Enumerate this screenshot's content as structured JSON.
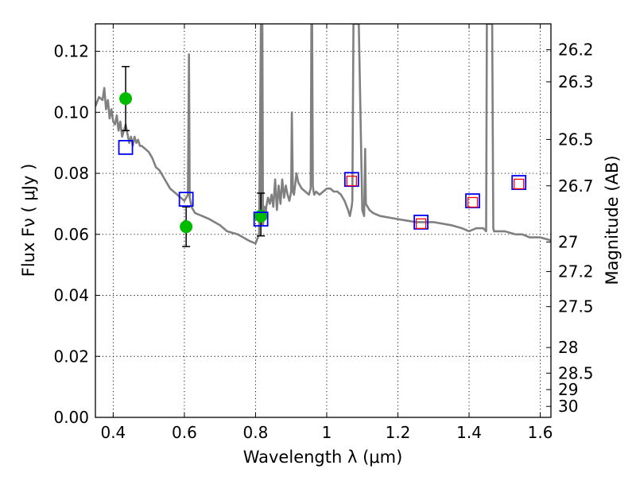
{
  "chart_data": {
    "type": "scatter",
    "title": "",
    "xlabel": "Wavelength  λ (μm)",
    "ylabel": "Flux  Fν  ( μJy )",
    "ylabel_right": "Magnitude (AB)",
    "xlim": [
      0.35,
      1.63
    ],
    "ylim": [
      0.0,
      0.129
    ],
    "grid": true,
    "x_ticks": [
      0.4,
      0.6,
      0.8,
      1.0,
      1.2,
      1.4,
      1.6
    ],
    "x_tick_labels": [
      "0.4",
      "0.6",
      "0.8",
      "1",
      "1.2",
      "1.4",
      "1.6"
    ],
    "y_ticks": [
      0.0,
      0.02,
      0.04,
      0.06,
      0.08,
      0.1,
      0.12
    ],
    "y_tick_labels": [
      "0.00",
      "0.02",
      "0.04",
      "0.06",
      "0.08",
      "0.10",
      "0.12"
    ],
    "right_axis": {
      "label": "Magnitude (AB)",
      "tick_labels": [
        "26.2",
        "26.3",
        "26.5",
        "26.7",
        "27",
        "27.2",
        "27.5",
        "28",
        "28.5",
        "29",
        "30"
      ],
      "tick_flux_values": [
        0.1205,
        0.11,
        0.0911,
        0.0759,
        0.0575,
        0.0478,
        0.0363,
        0.0229,
        0.0145,
        0.0091,
        0.0036
      ]
    },
    "series": [
      {
        "kind": "line",
        "color": "#808080",
        "x": [
          0.35,
          0.36,
          0.37,
          0.375,
          0.38,
          0.385,
          0.39,
          0.395,
          0.4,
          0.405,
          0.41,
          0.415,
          0.42,
          0.425,
          0.43,
          0.435,
          0.44,
          0.445,
          0.45,
          0.455,
          0.46,
          0.465,
          0.47,
          0.475,
          0.48,
          0.49,
          0.5,
          0.51,
          0.52,
          0.53,
          0.54,
          0.55,
          0.56,
          0.57,
          0.58,
          0.59,
          0.6,
          0.605,
          0.61,
          0.613,
          0.615,
          0.617,
          0.62,
          0.625,
          0.63,
          0.65,
          0.67,
          0.7,
          0.72,
          0.75,
          0.78,
          0.8,
          0.81,
          0.815,
          0.817,
          0.819,
          0.821,
          0.823,
          0.825,
          0.828,
          0.83,
          0.835,
          0.84,
          0.845,
          0.85,
          0.855,
          0.86,
          0.865,
          0.87,
          0.875,
          0.88,
          0.885,
          0.89,
          0.895,
          0.9,
          0.902,
          0.905,
          0.908,
          0.91,
          0.915,
          0.92,
          0.93,
          0.94,
          0.95,
          0.955,
          0.957,
          0.959,
          0.961,
          0.963,
          0.965,
          0.97,
          0.98,
          0.99,
          1.0,
          1.01,
          1.02,
          1.03,
          1.04,
          1.05,
          1.06,
          1.065,
          1.07,
          1.072,
          1.075,
          1.09,
          1.1,
          1.105,
          1.108,
          1.11,
          1.12,
          1.13,
          1.15,
          1.2,
          1.25,
          1.28,
          1.3,
          1.35,
          1.38,
          1.4,
          1.42,
          1.44,
          1.448,
          1.45,
          1.46,
          1.465,
          1.468,
          1.47,
          1.5,
          1.53,
          1.55,
          1.57,
          1.6,
          1.63
        ],
        "y": [
          0.102,
          0.105,
          0.104,
          0.108,
          0.101,
          0.104,
          0.098,
          0.101,
          0.097,
          0.096,
          0.099,
          0.094,
          0.097,
          0.092,
          0.094,
          0.096,
          0.093,
          0.09,
          0.092,
          0.089,
          0.092,
          0.09,
          0.091,
          0.089,
          0.089,
          0.088,
          0.087,
          0.085,
          0.082,
          0.081,
          0.079,
          0.077,
          0.075,
          0.074,
          0.073,
          0.072,
          0.071,
          0.072,
          0.073,
          0.119,
          0.072,
          0.071,
          0.069,
          0.068,
          0.067,
          0.066,
          0.065,
          0.063,
          0.061,
          0.06,
          0.058,
          0.057,
          0.06,
          0.13,
          0.063,
          0.13,
          0.063,
          0.066,
          0.069,
          0.065,
          0.069,
          0.072,
          0.07,
          0.073,
          0.069,
          0.078,
          0.068,
          0.076,
          0.07,
          0.078,
          0.072,
          0.076,
          0.073,
          0.071,
          0.074,
          0.1,
          0.074,
          0.073,
          0.075,
          0.08,
          0.077,
          0.075,
          0.074,
          0.073,
          0.075,
          0.13,
          0.13,
          0.076,
          0.074,
          0.073,
          0.074,
          0.073,
          0.074,
          0.075,
          0.075,
          0.074,
          0.074,
          0.073,
          0.071,
          0.068,
          0.066,
          0.069,
          0.071,
          0.13,
          0.13,
          0.068,
          0.066,
          0.088,
          0.07,
          0.068,
          0.067,
          0.066,
          0.065,
          0.064,
          0.064,
          0.064,
          0.063,
          0.062,
          0.061,
          0.062,
          0.062,
          0.061,
          0.13,
          0.13,
          0.13,
          0.062,
          0.061,
          0.061,
          0.06,
          0.06,
          0.059,
          0.059,
          0.058
        ]
      },
      {
        "kind": "points",
        "marker": "circle",
        "color": "#00bb00",
        "points": [
          {
            "x": 0.435,
            "y": 0.1045,
            "err_lo": 0.0105,
            "err_hi": 0.0105
          },
          {
            "x": 0.605,
            "y": 0.0625,
            "err_lo": 0.0065,
            "err_hi": 0.0065
          },
          {
            "x": 0.815,
            "y": 0.066,
            "err_lo": 0.0065,
            "err_hi": 0.0075
          }
        ]
      },
      {
        "kind": "points",
        "marker": "square-open",
        "color": "#0000ff",
        "points": [
          {
            "x": 0.435,
            "y": 0.0885
          },
          {
            "x": 0.605,
            "y": 0.0715
          },
          {
            "x": 0.815,
            "y": 0.065
          },
          {
            "x": 1.07,
            "y": 0.078
          },
          {
            "x": 1.265,
            "y": 0.064
          },
          {
            "x": 1.41,
            "y": 0.071
          },
          {
            "x": 1.54,
            "y": 0.077
          }
        ]
      },
      {
        "kind": "points",
        "marker": "square-open-small",
        "color": "#ff0000",
        "points": [
          {
            "x": 1.07,
            "y": 0.0775
          },
          {
            "x": 1.265,
            "y": 0.0635
          },
          {
            "x": 1.41,
            "y": 0.0705
          },
          {
            "x": 1.54,
            "y": 0.0765
          }
        ]
      }
    ]
  }
}
